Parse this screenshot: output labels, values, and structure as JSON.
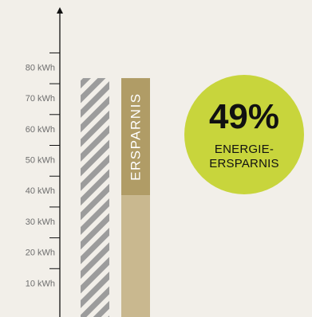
{
  "chart_data": {
    "type": "bar",
    "y_unit": "kWh",
    "ylim": [
      0,
      100
    ],
    "y_ticks": [
      {
        "value": 10,
        "label": "10 kWh"
      },
      {
        "value": 20,
        "label": "20 kWh"
      },
      {
        "value": 30,
        "label": "30 kWh"
      },
      {
        "value": 40,
        "label": "40 kWh"
      },
      {
        "value": 50,
        "label": "50 kWh"
      },
      {
        "value": 60,
        "label": "60 kWh"
      },
      {
        "value": 70,
        "label": "70 kWh"
      },
      {
        "value": 80,
        "label": "80 kWh"
      }
    ],
    "bars": {
      "conventional": {
        "value": 77.5
      },
      "efficient": {
        "value": 39.5,
        "savings": 38.0,
        "savings_label": "ERSPARNIS"
      }
    },
    "savings_badge": {
      "value": "49%",
      "caption_lines": [
        "ENERGIE-",
        "ERSPARNIS"
      ]
    },
    "grid": false
  },
  "colors": {
    "background": "#f2efe9",
    "axis": "#111111",
    "hatched_bar_stripe": "#9c9c9c",
    "savings_segment": "#b09c66",
    "base_segment": "#c9b88f",
    "bar_label": "#ffffff",
    "badge": "#c8d53c",
    "badge_text": "#111111"
  }
}
